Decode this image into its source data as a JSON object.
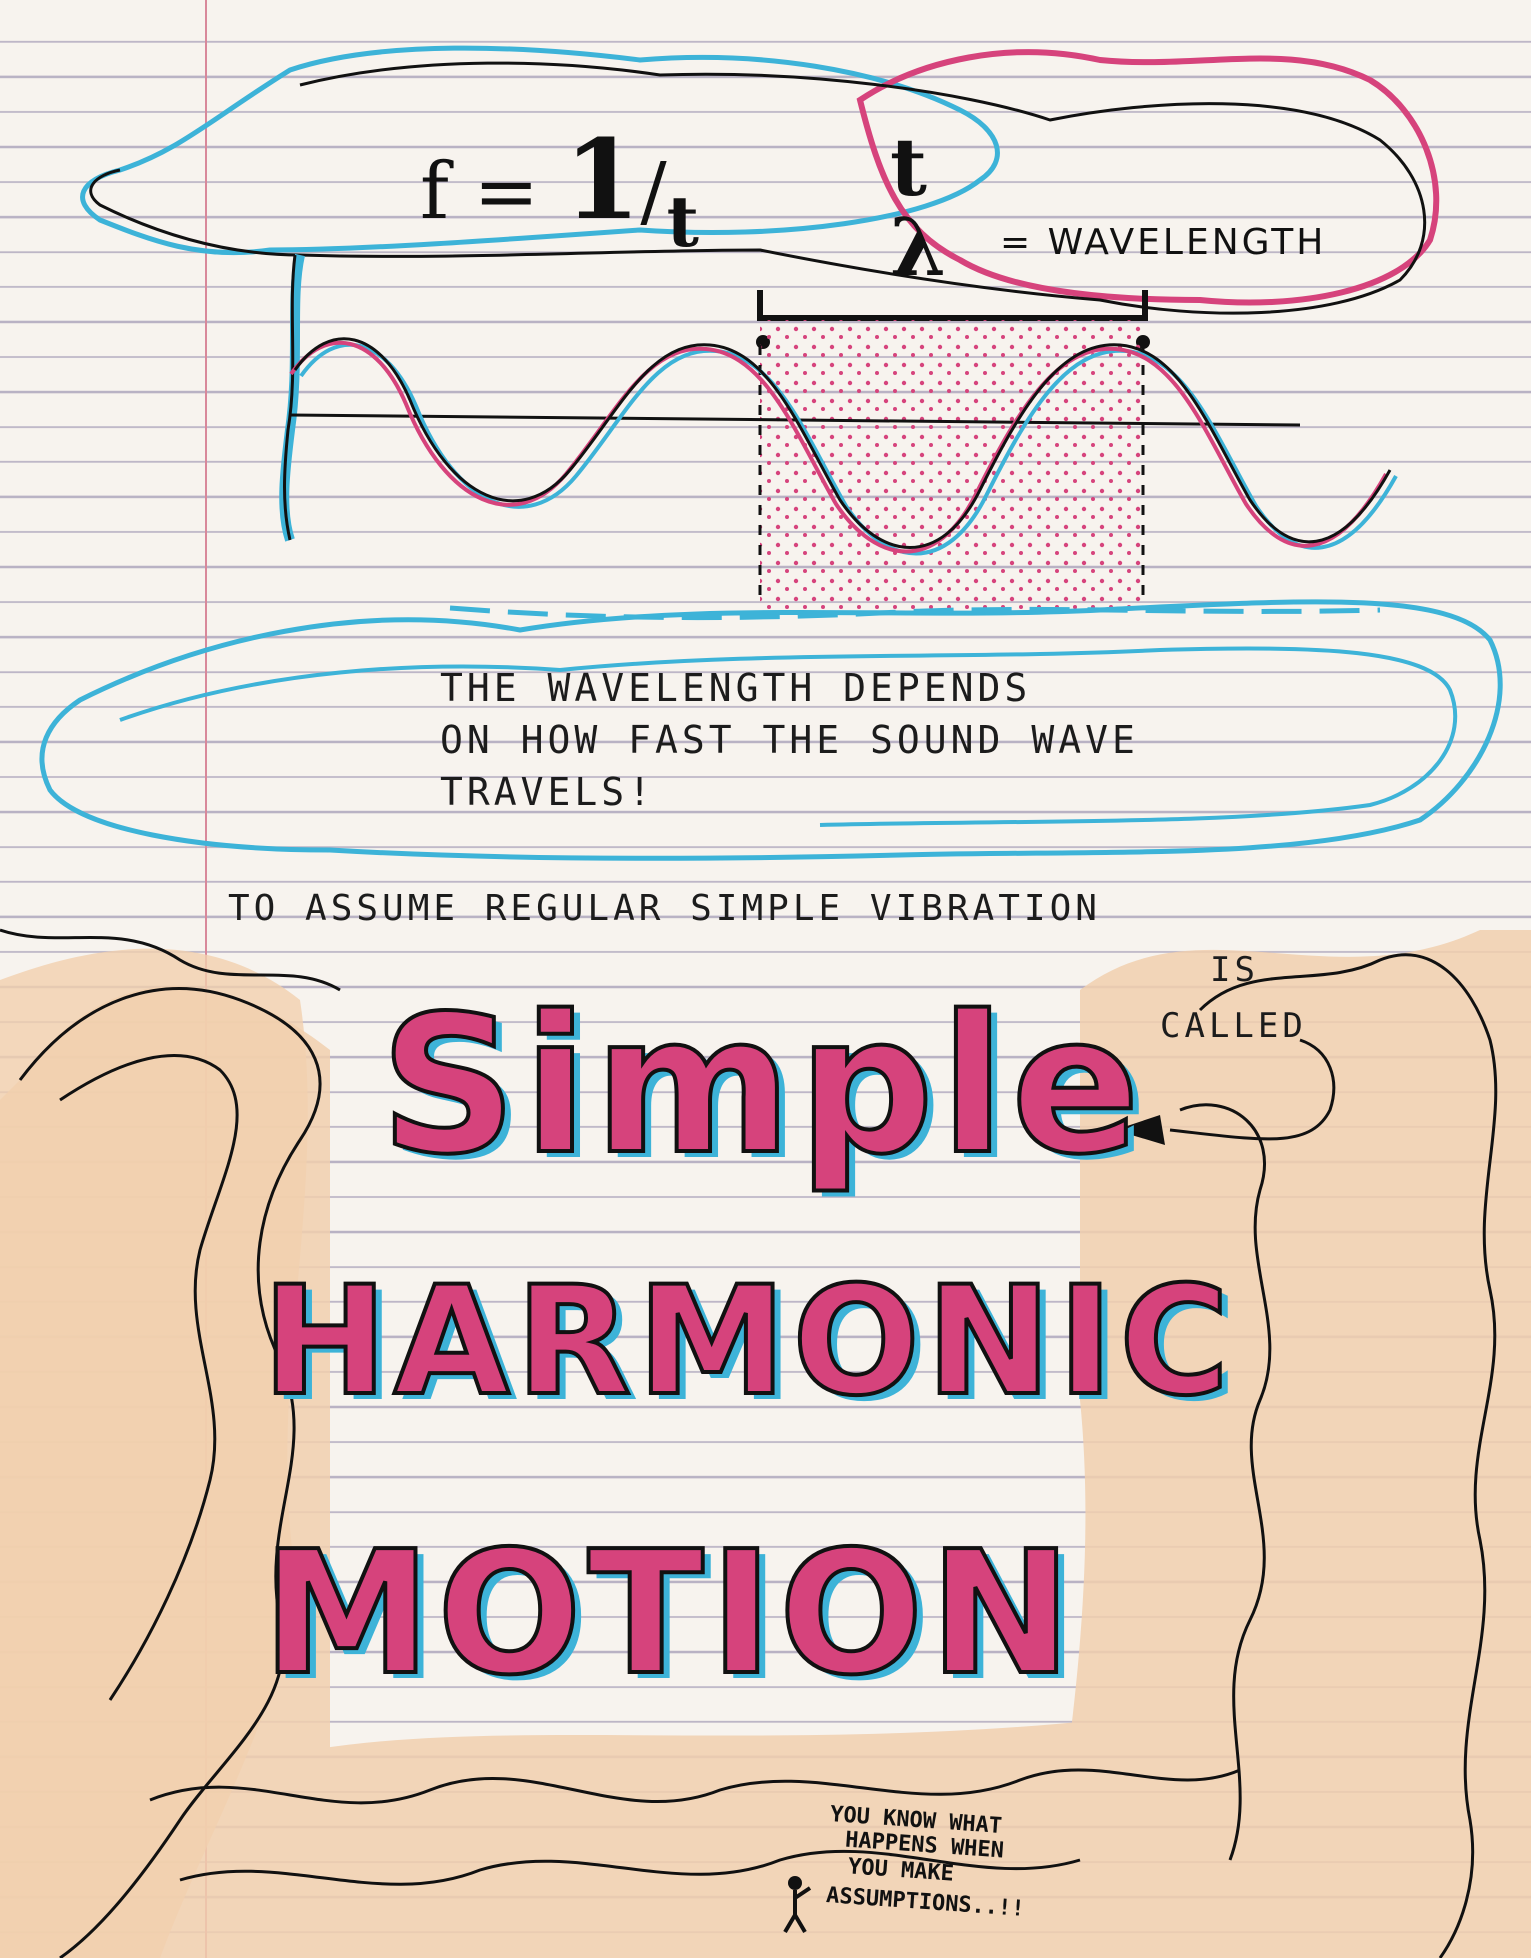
{
  "formula": {
    "f": "f",
    "eq": "=",
    "one": "1",
    "slash": "/",
    "t": "t"
  },
  "period_symbol": "t",
  "lambda_symbol": "λ",
  "lambda_label": "= WAVELENGTH",
  "note_wavelength": {
    "line1": "THE WAVELENGTH DEPENDS",
    "line2": "ON HOW FAST THE SOUND WAVE",
    "line3": "TRAVELS!"
  },
  "assumption_line": "TO ASSUME REGULAR SIMPLE VIBRATION",
  "is_word": "IS",
  "called_word": "CALLED",
  "headline": {
    "word1": "Simple",
    "word2": "HARMONIC",
    "word3": "MOTION"
  },
  "footnote": {
    "line1": "YOU KNOW WHAT",
    "line2": "HAPPENS WHEN",
    "line3": "YOU MAKE",
    "line4": "ASSUMPTIONS..!!"
  },
  "colors": {
    "ink": "#111111",
    "pink": "#d6437c",
    "blue": "#3db3d8",
    "peach": "#f1cfae",
    "paper": "#f7f3ee",
    "rule_line": "#b9b2c4",
    "margin_line": "#d8889a"
  }
}
